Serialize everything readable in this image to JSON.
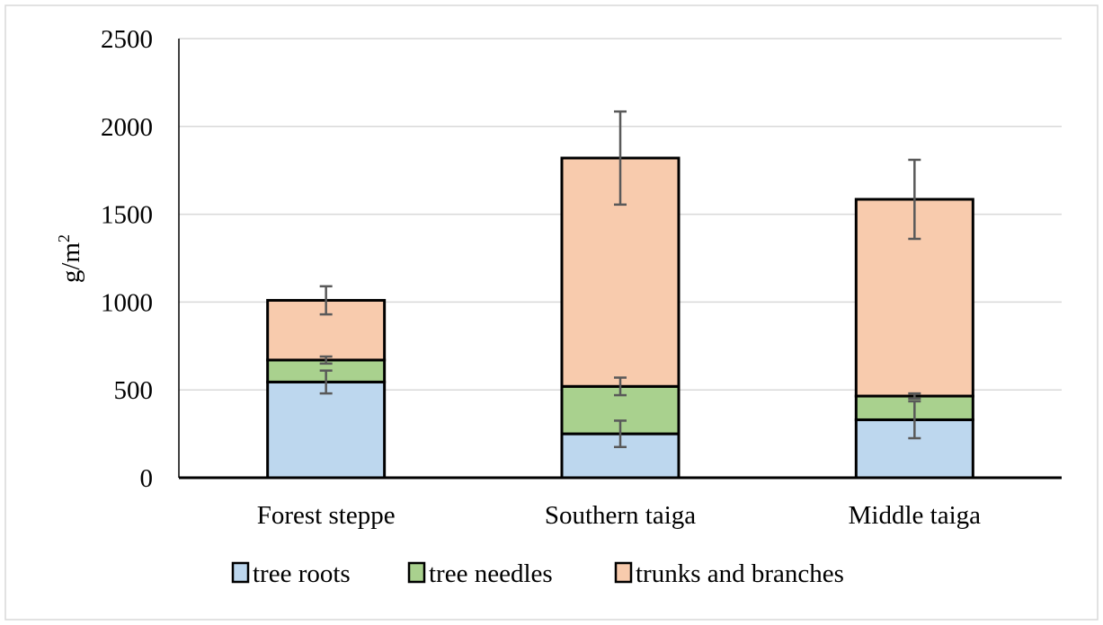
{
  "chart_data": {
    "type": "bar",
    "stacked": true,
    "title": "",
    "xlabel": "",
    "ylabel": "g/m",
    "ylabel_superscript": "2",
    "ylim": [
      0,
      2500
    ],
    "yticks": [
      0,
      500,
      1000,
      1500,
      2000,
      2500
    ],
    "grid": true,
    "legend_position": "bottom",
    "categories": [
      "Forest steppe",
      "Southern taiga",
      "Middle taiga"
    ],
    "series": [
      {
        "name": "tree roots",
        "color": "#bdd7ee",
        "values": [
          545,
          250,
          330
        ],
        "error": [
          65,
          75,
          105
        ]
      },
      {
        "name": "tree needles",
        "color": "#a9d18e",
        "values": [
          125,
          270,
          135
        ],
        "error": [
          20,
          50,
          15
        ]
      },
      {
        "name": "trunks and branches",
        "color": "#f8cbad",
        "values": [
          340,
          1300,
          1120
        ],
        "error": [
          80,
          265,
          225
        ]
      }
    ]
  }
}
